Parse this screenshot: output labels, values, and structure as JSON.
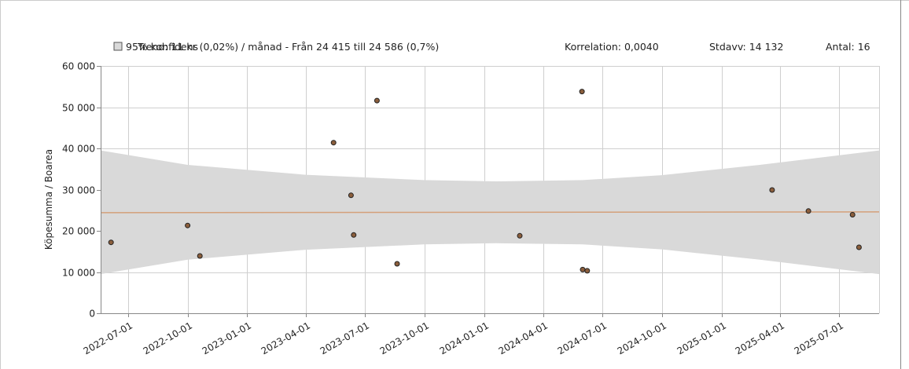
{
  "chart_data": {
    "type": "scatter",
    "ylabel": "Köpesumma / Boarea",
    "ylim": [
      0,
      60000
    ],
    "xlim": [
      "2022-05-20",
      "2025-09-01"
    ],
    "y_ticks": [
      "0",
      "10 000",
      "20 000",
      "30 000",
      "40 000",
      "50 000",
      "60 000"
    ],
    "y_tick_values": [
      0,
      10000,
      20000,
      30000,
      40000,
      50000,
      60000
    ],
    "x_ticks": [
      "2022-07-01",
      "2022-10-01",
      "2023-01-01",
      "2023-04-01",
      "2023-07-01",
      "2023-10-01",
      "2024-01-01",
      "2024-04-01",
      "2024-07-01",
      "2024-10-01",
      "2025-01-01",
      "2025-04-01",
      "2025-07-01"
    ],
    "grid": true,
    "legend": {
      "position": "top",
      "band_label": "95% konfidens",
      "trend_text": "Trend: 11 kr (0,02%) / månad  -  Från 24 415 till 24 586 (0,7%)",
      "correlation_text": "Korrelation: 0,0040",
      "stdev_text": "Stdavv: 14 132",
      "count_text": "Antal: 16"
    },
    "colors": {
      "band": "#d9d9d9",
      "trend": "#d4a07a",
      "point_fill": "#8b5e3c",
      "point_stroke": "#222222",
      "grid": "#cfcfcf",
      "axis": "#888888"
    },
    "trend": {
      "start": {
        "x": "2022-05-20",
        "y": 24415
      },
      "end": {
        "x": "2025-09-01",
        "y": 24586
      }
    },
    "band": {
      "x": [
        "2022-05-20",
        "2022-10-01",
        "2023-04-01",
        "2023-10-01",
        "2024-01-20",
        "2024-06-01",
        "2024-10-01",
        "2025-03-01",
        "2025-09-01"
      ],
      "upper": [
        39500,
        36000,
        33600,
        32300,
        32000,
        32300,
        33500,
        36000,
        39500
      ],
      "lower": [
        9500,
        13000,
        15400,
        16700,
        17000,
        16700,
        15500,
        13000,
        9500
      ]
    },
    "points": [
      {
        "x": "2022-06-05",
        "y": 17200
      },
      {
        "x": "2022-10-01",
        "y": 21300
      },
      {
        "x": "2022-10-20",
        "y": 13900
      },
      {
        "x": "2023-05-14",
        "y": 41400
      },
      {
        "x": "2023-06-10",
        "y": 28600
      },
      {
        "x": "2023-06-14",
        "y": 19000
      },
      {
        "x": "2023-07-20",
        "y": 51600
      },
      {
        "x": "2023-08-20",
        "y": 12000
      },
      {
        "x": "2024-02-25",
        "y": 18800
      },
      {
        "x": "2024-05-31",
        "y": 53800
      },
      {
        "x": "2024-06-01",
        "y": 10600
      },
      {
        "x": "2024-06-08",
        "y": 10300
      },
      {
        "x": "2025-03-20",
        "y": 29900
      },
      {
        "x": "2025-05-15",
        "y": 24800
      },
      {
        "x": "2025-07-22",
        "y": 23900
      },
      {
        "x": "2025-08-01",
        "y": 16000
      }
    ]
  }
}
